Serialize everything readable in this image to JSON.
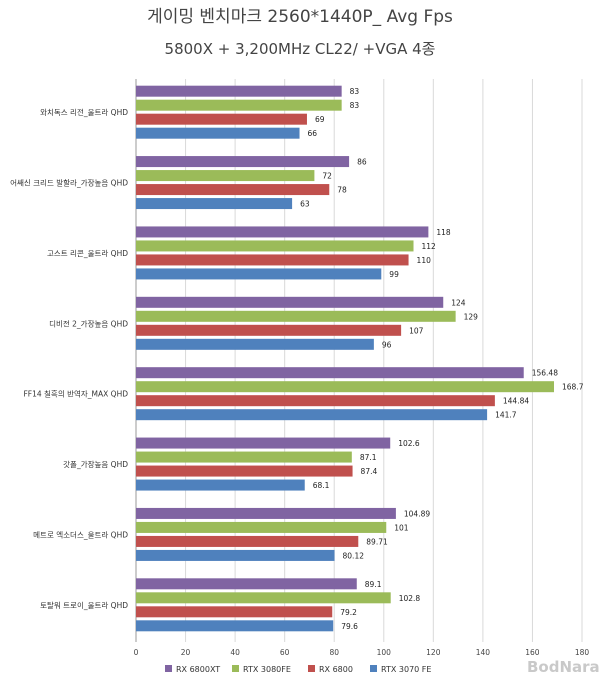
{
  "chart_data": {
    "type": "bar",
    "orientation": "horizontal",
    "title": "게이밍 벤치마크 2560*1440P_ Avg Fps",
    "subtitle": "5800X + 3,200MHz CL22/ +VGA 4종",
    "categories": [
      "와치독스 리전_울트라 QHD",
      "어쌔신 크리드 발할라_가장높음 QHD",
      "고스트 리콘_울트라 QHD",
      "디비전 2_가장높음 QHD",
      "FF14 칠흑의 반역자_MAX QHD",
      "갓폴_가장높음 QHD",
      "메트로 엑소더스_울트라 QHD",
      "토탈워 트로이_울트라 QHD"
    ],
    "series": [
      {
        "name": "RX 6800XT",
        "color": "#8064a2",
        "values": [
          83,
          86,
          118,
          124,
          156.48,
          102.6,
          104.89,
          89.1
        ],
        "labels": [
          "83",
          "86",
          "118",
          "124",
          "156.48",
          "102.6",
          "104.89",
          "89.1"
        ]
      },
      {
        "name": "RTX 3080FE",
        "color": "#9bbb59",
        "values": [
          83,
          72,
          112,
          129,
          168.7,
          87.1,
          101,
          102.8
        ],
        "labels": [
          "83",
          "72",
          "112",
          "129",
          "168.7",
          "87.1",
          "101",
          "102.8"
        ]
      },
      {
        "name": "RX 6800",
        "color": "#c0504d",
        "values": [
          69,
          78,
          110,
          107,
          144.84,
          87.4,
          89.71,
          79.2
        ],
        "labels": [
          "69",
          "78",
          "110",
          "107",
          "144.84",
          "87.4",
          "89.71",
          "79.2"
        ]
      },
      {
        "name": "RTX 3070 FE",
        "color": "#4f81bd",
        "values": [
          66,
          63,
          99,
          96,
          141.7,
          68.1,
          80.12,
          79.6
        ],
        "labels": [
          "66",
          "63",
          "99",
          "96",
          "141.7",
          "68.1",
          "80.12",
          "79.6"
        ]
      }
    ],
    "xlim": [
      0,
      180
    ],
    "xticks": [
      0,
      20,
      40,
      60,
      80,
      100,
      120,
      140,
      160,
      180
    ],
    "grid": true,
    "legend": "bottom"
  },
  "watermark": "BodNara"
}
